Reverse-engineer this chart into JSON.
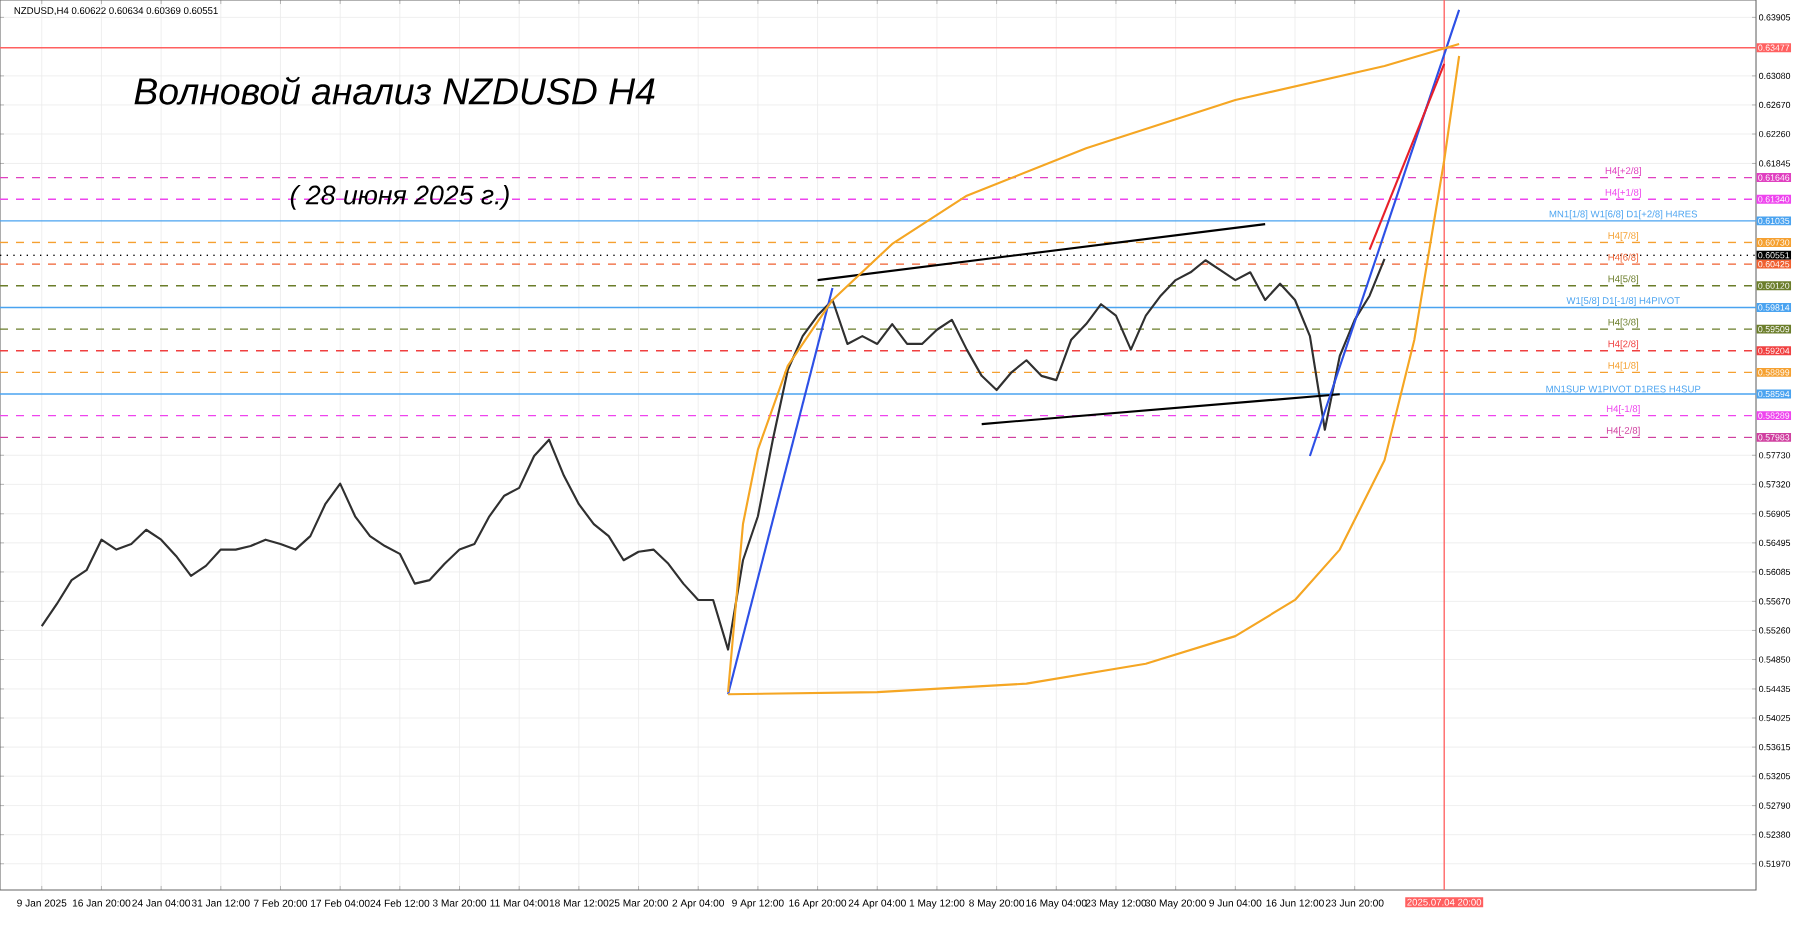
{
  "chart_data": {
    "type": "line",
    "title": "Волновой анализ NZDUSD H4",
    "subtitle": "( 28 июня 2025 г.)",
    "annotations": [
      "NZDUSD,H4 0.60622 0.60634 0.60369 0.60551",
      {
        "text": "H4[+2/8]",
        "y": 0.61646
      },
      {
        "text": "H4[+1/8]",
        "y": 0.6134
      },
      {
        "text": "MN1[1/8] W1[6/8] D1[+2/8] H4RES",
        "y": 0.61035
      },
      {
        "text": "H4[7/8]",
        "y": 0.6073
      },
      {
        "text": "H4[6/8]",
        "y": 0.60425
      },
      {
        "text": "H4[5/8]",
        "y": 0.6012
      },
      {
        "text": "W1[5/8] D1[-1/8] H4PIVOT",
        "y": 0.59814
      },
      {
        "text": "H4[3/8]",
        "y": 0.59509
      },
      {
        "text": "H4[2/8]",
        "y": 0.59204
      },
      {
        "text": "H4[1/8]",
        "y": 0.58899
      },
      {
        "text": "MN1SUP W1PIVOT D1RES H4SUP",
        "y": 0.58594
      },
      {
        "text": "H4[-1/8]",
        "y": 0.58289
      },
      {
        "text": "H4[-2/8]",
        "y": 0.57983
      }
    ],
    "categories": [
      "9 Jan 2025",
      null,
      null,
      null,
      "16 Jan 20:00",
      null,
      null,
      null,
      "24 Jan 04:00",
      null,
      null,
      null,
      "31 Jan 12:00",
      null,
      null,
      null,
      "7 Feb 20:00",
      null,
      null,
      null,
      "17 Feb 04:00",
      null,
      null,
      null,
      "24 Feb 12:00",
      null,
      null,
      null,
      "3 Mar 20:00",
      null,
      null,
      null,
      "11 Mar 04:00",
      null,
      null,
      null,
      "18 Mar 12:00",
      null,
      null,
      null,
      "25 Mar 20:00",
      null,
      null,
      null,
      "2 Apr 04:00",
      null,
      null,
      null,
      "9 Apr 12:00",
      null,
      null,
      null,
      "16 Apr 20:00",
      null,
      null,
      null,
      "24 Apr 04:00",
      null,
      null,
      null,
      "1 May 12:00",
      null,
      null,
      null,
      "8 May 20:00",
      null,
      null,
      null,
      "16 May 04:00",
      null,
      null,
      null,
      "23 May 12:00",
      null,
      null,
      null,
      "30 May 20:00",
      null,
      null,
      null,
      "9 Jun 04:00",
      null,
      null,
      null,
      "16 Jun 12:00",
      null,
      null,
      null,
      "23 Jun 20:00",
      null,
      null,
      null,
      null,
      null,
      "2025.07.04 20:00",
      null,
      null,
      null,
      null,
      null,
      null,
      null,
      null,
      null,
      null,
      null,
      null,
      null,
      null,
      null,
      null,
      null,
      null,
      null,
      null
    ],
    "series": [
      {
        "color": "#303030",
        "values": [
          0.5532,
          0.5563,
          0.5597,
          0.5611,
          0.5654,
          0.564,
          0.5648,
          0.5668,
          0.5654,
          0.5631,
          0.5603,
          0.5617,
          0.564,
          0.564,
          0.5645,
          0.5654,
          0.5648,
          0.564,
          0.5659,
          0.5704,
          0.5733,
          0.5687,
          0.5659,
          0.5645,
          0.5634,
          0.5592,
          0.5597,
          0.562,
          0.564,
          0.5648,
          0.5687,
          0.5716,
          0.5727,
          0.5772,
          0.5795,
          0.5744,
          0.5704,
          0.5676,
          0.5659,
          0.5625,
          0.5637,
          0.564,
          0.562,
          0.5592,
          0.5569,
          0.5569,
          0.5499,
          0.5625,
          0.5687,
          0.5795,
          0.5893,
          0.5941,
          0.597,
          0.5992,
          0.593,
          0.5941,
          0.593,
          0.5958,
          0.593,
          0.593,
          0.595,
          0.5964,
          0.5922,
          0.5885,
          0.5865,
          0.589,
          0.5907,
          0.5885,
          0.5879,
          0.5936,
          0.5958,
          0.5986,
          0.597,
          0.5922,
          0.597,
          0.5998,
          0.602,
          0.6031,
          0.6048,
          0.6034,
          0.602,
          0.6031,
          0.5992,
          0.6015,
          0.5992,
          0.5941,
          0.5809,
          0.5913,
          0.5964,
          0.5998,
          0.605,
          null,
          null,
          null,
          null,
          null,
          null,
          null,
          null,
          null,
          null,
          null,
          null,
          null,
          null,
          null,
          null,
          null,
          null,
          null,
          null,
          null,
          null,
          null,
          null
        ]
      },
      {
        "color": "#000000",
        "values": [
          null,
          null,
          null,
          null,
          null,
          null,
          null,
          null,
          null,
          null,
          null,
          null,
          null,
          null,
          null,
          null,
          null,
          null,
          null,
          null,
          null,
          null,
          null,
          null,
          null,
          null,
          null,
          null,
          null,
          null,
          null,
          null,
          null,
          null,
          null,
          null,
          null,
          null,
          null,
          null,
          null,
          null,
          null,
          null,
          null,
          null,
          null,
          null,
          null,
          null,
          null,
          null,
          0.602,
          null,
          null,
          null,
          null,
          null,
          null,
          null,
          null,
          null,
          null,
          null,
          null,
          null,
          null,
          null,
          null,
          null,
          null,
          null,
          null,
          null,
          null,
          null,
          null,
          null,
          null,
          null,
          null,
          null,
          0.6099,
          null,
          null,
          null,
          null,
          null,
          null,
          null,
          null,
          null,
          null,
          null,
          null,
          null,
          null,
          null,
          null,
          null,
          null,
          null,
          null,
          null,
          null,
          null,
          null,
          null,
          null,
          null,
          null,
          null,
          null,
          null,
          null
        ]
      },
      {
        "color": "#000000",
        "values": [
          null,
          null,
          null,
          null,
          null,
          null,
          null,
          null,
          null,
          null,
          null,
          null,
          null,
          null,
          null,
          null,
          null,
          null,
          null,
          null,
          null,
          null,
          null,
          null,
          null,
          null,
          null,
          null,
          null,
          null,
          null,
          null,
          null,
          null,
          null,
          null,
          null,
          null,
          null,
          null,
          null,
          null,
          null,
          null,
          null,
          null,
          null,
          null,
          null,
          null,
          null,
          null,
          null,
          null,
          null,
          null,
          null,
          null,
          null,
          null,
          null,
          null,
          null,
          0.5817,
          null,
          null,
          null,
          null,
          null,
          null,
          null,
          null,
          null,
          null,
          null,
          null,
          null,
          null,
          null,
          null,
          null,
          null,
          null,
          null,
          null,
          null,
          null,
          0.5859,
          null,
          null,
          null,
          null,
          null,
          null,
          null,
          null,
          null,
          null,
          null,
          null,
          null,
          null,
          null,
          null,
          null,
          null,
          null,
          null,
          null,
          null,
          null,
          null,
          null,
          null,
          null
        ]
      },
      {
        "color": "#2d50e6",
        "values": [
          null,
          null,
          null,
          null,
          null,
          null,
          null,
          null,
          null,
          null,
          null,
          null,
          null,
          null,
          null,
          null,
          null,
          null,
          null,
          null,
          null,
          null,
          null,
          null,
          null,
          null,
          null,
          null,
          null,
          null,
          null,
          null,
          null,
          null,
          null,
          null,
          null,
          null,
          null,
          null,
          null,
          null,
          null,
          null,
          null,
          null,
          0.5436,
          null,
          null,
          null,
          null,
          null,
          null,
          0.6009,
          null,
          null,
          null,
          null,
          null,
          null,
          null,
          null,
          null,
          null,
          null,
          null,
          null,
          null,
          null,
          null,
          null,
          null,
          null,
          null,
          null,
          null,
          null,
          null,
          null,
          null,
          null,
          null,
          null,
          null,
          null,
          null,
          null,
          null,
          null,
          null,
          null,
          null,
          null,
          null,
          null,
          null,
          null,
          null,
          null,
          null,
          null,
          null,
          null,
          null,
          null,
          null,
          null,
          null,
          null,
          null,
          null,
          null,
          null,
          null,
          null
        ]
      },
      {
        "color": "#2d50e6",
        "values": [
          null,
          null,
          null,
          null,
          null,
          null,
          null,
          null,
          null,
          null,
          null,
          null,
          null,
          null,
          null,
          null,
          null,
          null,
          null,
          null,
          null,
          null,
          null,
          null,
          null,
          null,
          null,
          null,
          null,
          null,
          null,
          null,
          null,
          null,
          null,
          null,
          null,
          null,
          null,
          null,
          null,
          null,
          null,
          null,
          null,
          null,
          null,
          null,
          null,
          null,
          null,
          null,
          null,
          null,
          null,
          null,
          null,
          null,
          null,
          null,
          null,
          null,
          null,
          null,
          null,
          null,
          null,
          null,
          null,
          null,
          null,
          null,
          null,
          null,
          null,
          null,
          null,
          null,
          null,
          null,
          null,
          null,
          null,
          null,
          null,
          0.5772,
          null,
          null,
          null,
          null,
          null,
          null,
          null,
          null,
          null,
          0.6401,
          null,
          null,
          null,
          null,
          null,
          null,
          null,
          null,
          null,
          null,
          null,
          null,
          null,
          null,
          null,
          null,
          null,
          null,
          null
        ]
      },
      {
        "color": "#e8202a",
        "values": [
          null,
          null,
          null,
          null,
          null,
          null,
          null,
          null,
          null,
          null,
          null,
          null,
          null,
          null,
          null,
          null,
          null,
          null,
          null,
          null,
          null,
          null,
          null,
          null,
          null,
          null,
          null,
          null,
          null,
          null,
          null,
          null,
          null,
          null,
          null,
          null,
          null,
          null,
          null,
          null,
          null,
          null,
          null,
          null,
          null,
          null,
          null,
          null,
          null,
          null,
          null,
          null,
          null,
          null,
          null,
          null,
          null,
          null,
          null,
          null,
          null,
          null,
          null,
          null,
          null,
          null,
          null,
          null,
          null,
          null,
          null,
          null,
          null,
          null,
          null,
          null,
          null,
          null,
          null,
          null,
          null,
          null,
          null,
          null,
          null,
          null,
          null,
          null,
          null,
          0.6063,
          null,
          null,
          null,
          null,
          0.6325,
          null,
          null,
          null,
          null,
          null,
          null,
          null,
          null,
          null,
          null,
          null,
          null,
          null,
          null,
          null,
          null,
          null,
          null,
          null,
          null
        ]
      },
      {
        "color": "#f5a623",
        "values": [
          null,
          null,
          null,
          null,
          null,
          null,
          null,
          null,
          null,
          null,
          null,
          null,
          null,
          null,
          null,
          null,
          null,
          null,
          null,
          null,
          null,
          null,
          null,
          null,
          null,
          null,
          null,
          null,
          null,
          null,
          null,
          null,
          null,
          null,
          null,
          null,
          null,
          null,
          null,
          null,
          null,
          null,
          null,
          null,
          null,
          null,
          0.5439,
          0.5676,
          0.5781,
          null,
          0.5899,
          null,
          null,
          0.5992,
          null,
          null,
          null,
          0.6071,
          null,
          null,
          null,
          null,
          0.6139,
          null,
          null,
          null,
          null,
          null,
          null,
          null,
          0.6206,
          null,
          null,
          null,
          null,
          null,
          null,
          null,
          null,
          null,
          0.6274,
          null,
          null,
          null,
          null,
          null,
          null,
          null,
          null,
          null,
          0.6322,
          null,
          null,
          null,
          null,
          0.6353,
          null,
          null,
          null,
          null,
          null,
          null,
          null,
          null,
          null,
          null,
          null,
          null,
          null,
          null,
          null,
          null,
          null,
          null,
          null
        ]
      },
      {
        "color": "#f5a623",
        "values": [
          null,
          null,
          null,
          null,
          null,
          null,
          null,
          null,
          null,
          null,
          null,
          null,
          null,
          null,
          null,
          null,
          null,
          null,
          null,
          null,
          null,
          null,
          null,
          null,
          null,
          null,
          null,
          null,
          null,
          null,
          null,
          null,
          null,
          null,
          null,
          null,
          null,
          null,
          null,
          null,
          null,
          null,
          null,
          null,
          null,
          null,
          0.5436,
          null,
          null,
          null,
          null,
          null,
          null,
          null,
          null,
          null,
          0.5439,
          null,
          null,
          null,
          null,
          null,
          null,
          null,
          null,
          null,
          0.5451,
          null,
          null,
          null,
          null,
          null,
          null,
          null,
          0.5479,
          null,
          null,
          null,
          null,
          null,
          0.5518,
          null,
          null,
          null,
          0.5569,
          null,
          null,
          0.564,
          null,
          null,
          0.5766,
          null,
          0.5936,
          null,
          0.6189,
          0.6336,
          null,
          null,
          null,
          null,
          null,
          null,
          null,
          null,
          null,
          null,
          null,
          null,
          null,
          null,
          null,
          null,
          null,
          null,
          null
        ]
      }
    ],
    "ylim": [
      0.516,
      0.6415
    ],
    "yticks": [
      {
        "value": 0.5197,
        "label": "0.51970"
      },
      {
        "value": 0.5238,
        "label": "0.52380"
      },
      {
        "value": 0.5279,
        "label": "0.52790"
      },
      {
        "value": 0.53205,
        "label": "0.53205"
      },
      {
        "value": 0.53615,
        "label": "0.53615"
      },
      {
        "value": 0.54025,
        "label": "0.54025"
      },
      {
        "value": 0.54435,
        "label": "0.54435"
      },
      {
        "value": 0.5485,
        "label": "0.54850"
      },
      {
        "value": 0.5526,
        "label": "0.55260"
      },
      {
        "value": 0.5567,
        "label": "0.55670"
      },
      {
        "value": 0.56085,
        "label": "0.56085"
      },
      {
        "value": 0.56495,
        "label": "0.56495"
      },
      {
        "value": 0.56905,
        "label": "0.56905"
      },
      {
        "value": 0.5732,
        "label": "0.57320"
      },
      {
        "value": 0.5773,
        "label": "0.57730"
      },
      {
        "value": 0.61845,
        "label": "0.61845"
      },
      {
        "value": 0.6226,
        "label": "0.62260"
      },
      {
        "value": 0.6267,
        "label": "0.62670"
      },
      {
        "value": 0.6308,
        "label": "0.63080"
      },
      {
        "value": 0.63905,
        "label": "0.63905"
      }
    ],
    "ref_lines": [
      {
        "axis": "y",
        "value": 0.63477,
        "label": "0.63477",
        "color": "#ff6060",
        "line_style": "solid"
      },
      {
        "axis": "y",
        "value": 0.61646,
        "label": "0.61646",
        "color": "#e040c0",
        "line_style": "dashed"
      },
      {
        "axis": "y",
        "value": 0.6134,
        "label": "0.61340",
        "color": "#ee44ee",
        "line_style": "dashed"
      },
      {
        "axis": "y",
        "value": 0.61035,
        "label": "0.61035",
        "color": "#4aa3f0",
        "line_style": "solid"
      },
      {
        "axis": "y",
        "value": 0.6073,
        "label": "0.60730",
        "color": "#f5a030",
        "line_style": "dashed"
      },
      {
        "axis": "y",
        "value": 0.60551,
        "label": "0.60551",
        "color": "#000000",
        "line_style": "dotted"
      },
      {
        "axis": "y",
        "value": 0.60425,
        "label": "0.60425",
        "color": "#f06030",
        "line_style": "dashed"
      },
      {
        "axis": "y",
        "value": 0.6012,
        "label": "0.60120",
        "color": "#6b7d2a",
        "line_style": "dashed"
      },
      {
        "axis": "y",
        "value": 0.59814,
        "label": "0.59814",
        "color": "#4aa3f0",
        "line_style": "solid"
      },
      {
        "axis": "y",
        "value": 0.59509,
        "label": "0.59509",
        "color": "#6b7d2a",
        "line_style": "dashed"
      },
      {
        "axis": "y",
        "value": 0.59204,
        "label": "0.59204",
        "color": "#f04040",
        "line_style": "dashed"
      },
      {
        "axis": "y",
        "value": 0.58899,
        "label": "0.58899",
        "color": "#f5a030",
        "line_style": "dashed"
      },
      {
        "axis": "y",
        "value": 0.58594,
        "label": "0.58594",
        "color": "#4aa3f0",
        "line_style": "solid"
      },
      {
        "axis": "y",
        "value": 0.58289,
        "label": "0.58289",
        "color": "#ee44ee",
        "line_style": "dashed"
      },
      {
        "axis": "y",
        "value": 0.57983,
        "label": "0.57983",
        "color": "#d040a0",
        "line_style": "dashed"
      },
      {
        "axis": "x",
        "value": "2025.07.04 20:00",
        "color": "#ff6060",
        "line_style": "solid"
      }
    ],
    "grid": true
  }
}
